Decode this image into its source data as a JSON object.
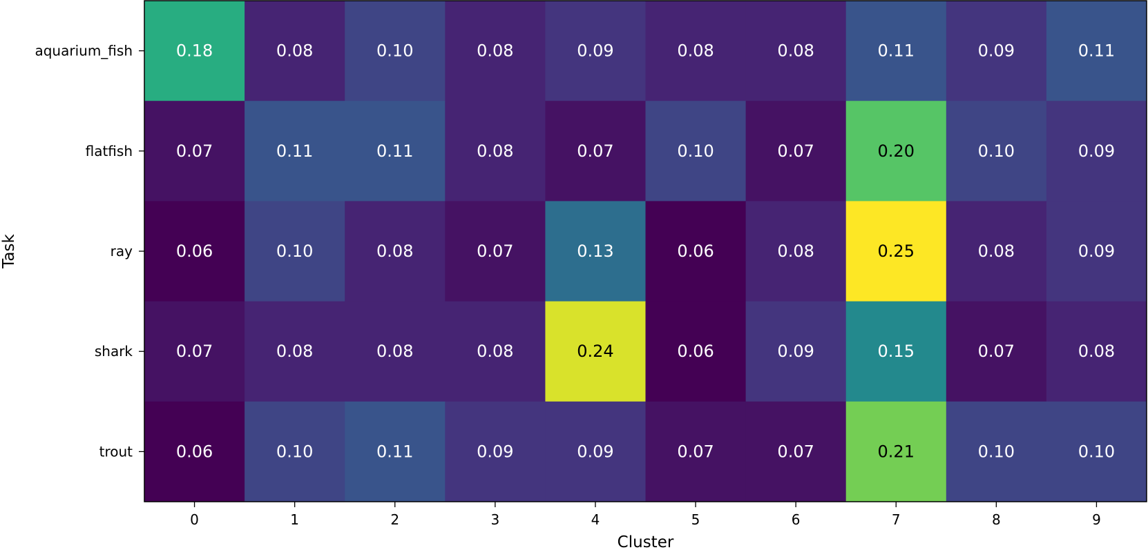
{
  "chart_data": {
    "type": "heatmap",
    "title": "",
    "xlabel": "Cluster",
    "ylabel": "Task",
    "x_categories": [
      "0",
      "1",
      "2",
      "3",
      "4",
      "5",
      "6",
      "7",
      "8",
      "9"
    ],
    "y_categories": [
      "aquarium_fish",
      "flatfish",
      "ray",
      "shark",
      "trout"
    ],
    "values": [
      [
        0.18,
        0.08,
        0.1,
        0.08,
        0.09,
        0.08,
        0.08,
        0.11,
        0.09,
        0.11
      ],
      [
        0.07,
        0.11,
        0.11,
        0.08,
        0.07,
        0.1,
        0.07,
        0.2,
        0.1,
        0.09
      ],
      [
        0.06,
        0.1,
        0.08,
        0.07,
        0.13,
        0.06,
        0.08,
        0.25,
        0.08,
        0.09
      ],
      [
        0.07,
        0.08,
        0.08,
        0.08,
        0.24,
        0.06,
        0.09,
        0.15,
        0.07,
        0.08
      ],
      [
        0.06,
        0.1,
        0.11,
        0.09,
        0.09,
        0.07,
        0.07,
        0.21,
        0.1,
        0.1
      ]
    ],
    "colormap": "viridis",
    "annotation_format": "0.00",
    "grid": false,
    "legend": "none"
  }
}
